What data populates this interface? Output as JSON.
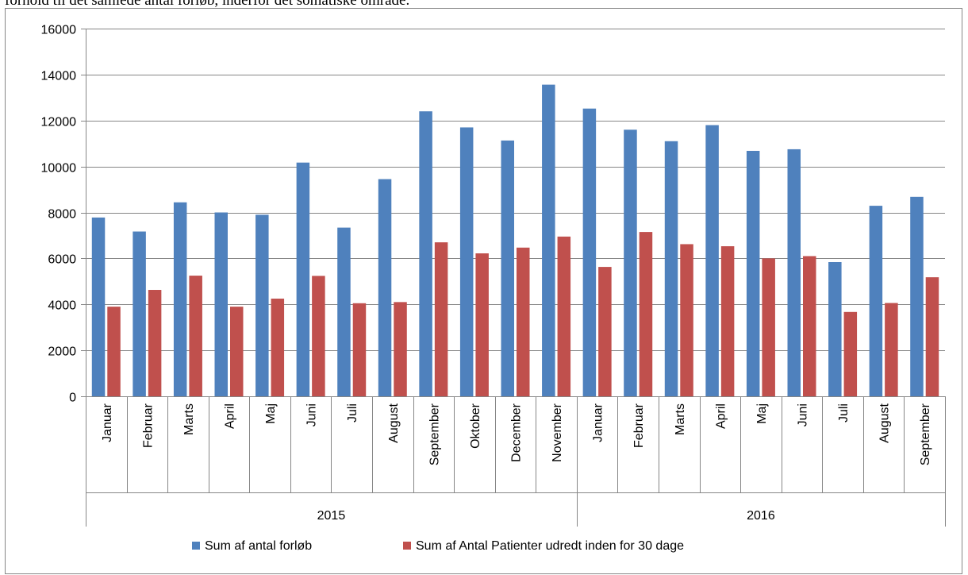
{
  "caption": "forhold til det samlede antal forløb, inderfor det somatiske område.",
  "chart_data": {
    "type": "bar",
    "ylim": [
      0,
      16000
    ],
    "yticks": [
      0,
      2000,
      4000,
      6000,
      8000,
      10000,
      12000,
      14000,
      16000
    ],
    "grid": true,
    "legend_position": "bottom",
    "groups": [
      {
        "label": "2015",
        "count": 12
      },
      {
        "label": "2016",
        "count": 9
      }
    ],
    "categories": [
      "Januar",
      "Februar",
      "Marts",
      "April",
      "Maj",
      "Juni",
      "Juli",
      "August",
      "September",
      "Oktober",
      "December",
      "November",
      "Januar",
      "Februar",
      "Marts",
      "April",
      "Maj",
      "Juni",
      "Juli",
      "August",
      "September"
    ],
    "series": [
      {
        "name": "Sum af antal forløb",
        "color": "#4f81bd",
        "values": [
          7780,
          7170,
          8440,
          8000,
          7900,
          10170,
          7340,
          9450,
          12400,
          11700,
          11130,
          13560,
          12520,
          11600,
          11100,
          11800,
          10680,
          10750,
          5840,
          8290,
          8680
        ]
      },
      {
        "name": "Sum af Antal Patienter udredt inden for 30 dage",
        "color": "#c0504d",
        "values": [
          3900,
          4630,
          5250,
          3900,
          4250,
          5240,
          4050,
          4100,
          6700,
          6220,
          6470,
          6950,
          5630,
          7150,
          6620,
          6530,
          6000,
          6100,
          3670,
          4060,
          5180
        ]
      }
    ]
  }
}
